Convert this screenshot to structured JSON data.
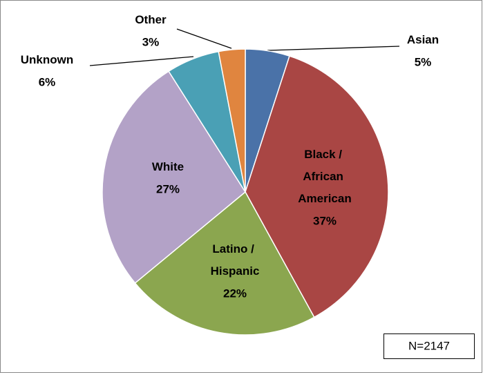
{
  "chart_data": {
    "type": "pie",
    "categories": [
      "Asian",
      "Black / African American",
      "Latino / Hispanic",
      "White",
      "Unknown",
      "Other"
    ],
    "values": [
      5,
      37,
      22,
      27,
      6,
      3
    ],
    "value_labels": [
      "5%",
      "37%",
      "22%",
      "27%",
      "6%",
      "3%"
    ],
    "colors": [
      "#4a72a8",
      "#a94644",
      "#8ba64f",
      "#b3a2c7",
      "#4aa0b5",
      "#e0853f"
    ],
    "annotations": [
      "N=2147"
    ]
  }
}
